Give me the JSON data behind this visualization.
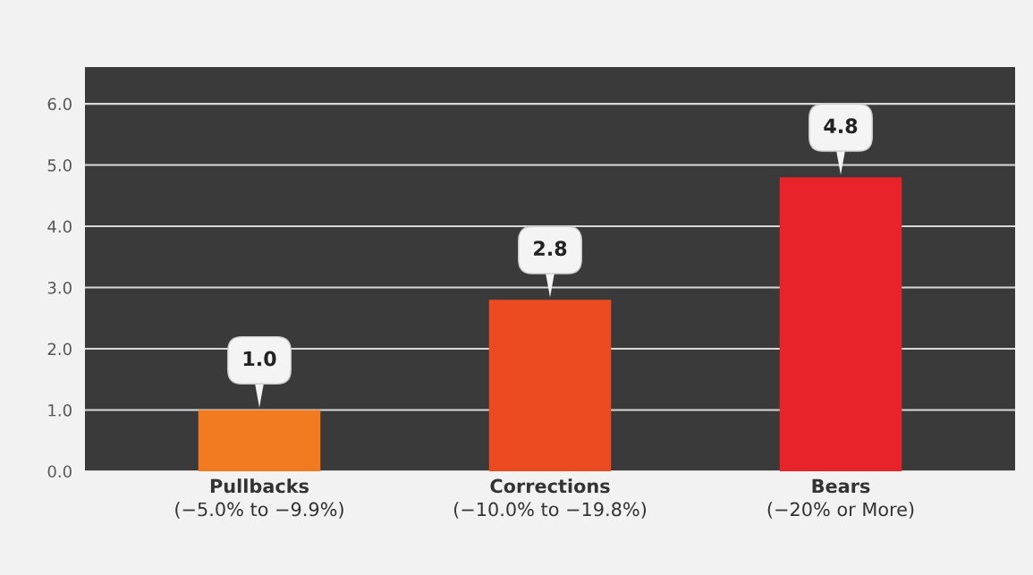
{
  "chart_data": {
    "type": "bar",
    "categories": [
      "Pullbacks\n(−5.0% to −9.9%)",
      "Corrections\n(−10.0% to −19.8%)",
      "Bears\n(−20% or More)"
    ],
    "values": [
      1.0,
      2.8,
      4.8
    ],
    "colors": [
      "#f27b22",
      "#ec4a20",
      "#e8232a"
    ],
    "ylim": [
      0,
      6.6
    ],
    "yticks": [
      {
        "value": 0,
        "label": "0.0"
      },
      {
        "value": 1,
        "label": "1.0"
      },
      {
        "value": 2,
        "label": "2.0"
      },
      {
        "value": 3,
        "label": "3.0"
      },
      {
        "value": 4,
        "label": "4.0"
      },
      {
        "value": 5,
        "label": "5.0"
      },
      {
        "value": 6,
        "label": "6.0"
      }
    ],
    "value_labels": [
      "1.0",
      "2.8",
      "4.8"
    ],
    "grid": "y",
    "legend": false
  }
}
